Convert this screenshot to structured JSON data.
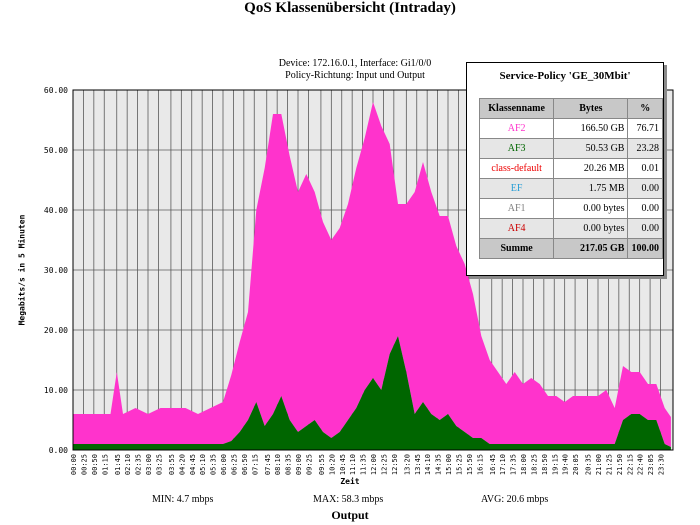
{
  "title": "QoS Klassenübersicht (Intraday)",
  "device_line1": "Device: 172.16.0.1, Interface: Gi1/0/0",
  "device_line2": "Policy-Richtung: Input und Output",
  "stats": {
    "min": "MIN: 4.7 mbps",
    "max": "MAX: 58.3 mbps",
    "avg": "AVG: 20.6 mbps"
  },
  "output_label": "Output",
  "legend": {
    "title": "Service-Policy 'GE_30Mbit'",
    "headers": [
      "Klassenname",
      "Bytes",
      "%"
    ],
    "rows": [
      {
        "name": "AF2",
        "bytes": "166.50 GB",
        "pct": "76.71",
        "color": "#ff33cc"
      },
      {
        "name": "AF3",
        "bytes": "50.53 GB",
        "pct": "23.28",
        "color": "#006600"
      },
      {
        "name": "class-default",
        "bytes": "20.26 MB",
        "pct": "0.01",
        "color": "#ee0000"
      },
      {
        "name": "EF",
        "bytes": "1.75 MB",
        "pct": "0.00",
        "color": "#2a9fd6"
      },
      {
        "name": "AF1",
        "bytes": "0.00 bytes",
        "pct": "0.00",
        "color": "#808080"
      },
      {
        "name": "AF4",
        "bytes": "0.00 bytes",
        "pct": "0.00",
        "color": "#cc0000"
      }
    ],
    "sum": {
      "name": "Summe",
      "bytes": "217.05 GB",
      "pct": "100.00"
    }
  },
  "chart_data": {
    "type": "area",
    "stacked": true,
    "ylabel": "Megabits/s  in 5 Minuten",
    "xlabel": "Zeit",
    "ylim": [
      0,
      60
    ],
    "yticks": [
      "0.00",
      "10.00",
      "20.00",
      "30.00",
      "40.00",
      "50.00",
      "60.00"
    ],
    "grid": true,
    "xticks": [
      "00:00",
      "00:25",
      "00:50",
      "01:15",
      "01:45",
      "02:10",
      "02:35",
      "03:00",
      "03:25",
      "03:55",
      "04:20",
      "04:45",
      "05:10",
      "05:35",
      "06:00",
      "06:25",
      "06:50",
      "07:15",
      "07:45",
      "08:10",
      "08:35",
      "09:00",
      "09:25",
      "09:55",
      "10:20",
      "10:45",
      "11:10",
      "11:35",
      "12:00",
      "12:25",
      "12:50",
      "13:20",
      "13:45",
      "14:10",
      "14:35",
      "15:00",
      "15:25",
      "15:50",
      "16:15",
      "16:45",
      "17:10",
      "17:35",
      "18:00",
      "18:25",
      "18:50",
      "19:15",
      "19:40",
      "20:05",
      "20:35",
      "21:00",
      "21:25",
      "21:50",
      "22:15",
      "22:40",
      "23:05",
      "23:30"
    ],
    "x": [
      "00:00",
      "00:30",
      "01:00",
      "01:30",
      "01:45",
      "02:00",
      "02:30",
      "03:00",
      "03:30",
      "04:00",
      "04:30",
      "05:00",
      "05:30",
      "06:00",
      "06:20",
      "06:40",
      "07:00",
      "07:20",
      "07:40",
      "08:00",
      "08:20",
      "08:40",
      "09:00",
      "09:20",
      "09:40",
      "10:00",
      "10:20",
      "10:40",
      "11:00",
      "11:20",
      "11:40",
      "12:00",
      "12:20",
      "12:40",
      "13:00",
      "13:20",
      "13:40",
      "14:00",
      "14:20",
      "14:40",
      "15:00",
      "15:20",
      "15:40",
      "16:00",
      "16:20",
      "16:40",
      "17:00",
      "17:20",
      "17:40",
      "18:00",
      "18:20",
      "18:40",
      "19:00",
      "19:20",
      "19:40",
      "20:00",
      "20:20",
      "20:40",
      "21:00",
      "21:20",
      "21:40",
      "22:00",
      "22:20",
      "22:40",
      "23:00",
      "23:20",
      "23:40",
      "23:55"
    ],
    "series": [
      {
        "name": "AF3",
        "color": "#006600",
        "values": [
          1,
          1,
          1,
          1,
          1,
          1,
          1,
          1,
          1,
          1,
          1,
          1,
          1,
          1,
          1.5,
          3,
          5,
          8,
          4,
          6,
          9,
          5,
          3,
          4,
          5,
          3,
          2,
          3,
          5,
          7,
          10,
          12,
          10,
          16,
          19,
          13,
          6,
          8,
          6,
          5,
          6,
          4,
          3,
          2,
          2,
          1,
          1,
          1,
          1,
          1,
          1,
          1,
          1,
          1,
          1,
          1,
          1,
          1,
          1,
          1,
          1,
          5,
          6,
          6,
          5,
          5,
          1,
          0.5
        ]
      },
      {
        "name": "AF2",
        "color": "#ff33cc",
        "values": [
          5,
          5,
          5,
          5,
          12,
          5,
          6,
          5,
          6,
          6,
          6,
          5,
          6,
          7,
          11,
          15,
          18,
          32,
          43,
          50,
          47,
          44,
          40,
          42,
          38,
          35,
          33,
          34,
          36,
          40,
          42,
          46,
          44,
          35,
          22,
          28,
          37,
          40,
          37,
          34,
          33,
          30,
          28,
          24,
          17,
          14,
          12,
          10,
          12,
          10,
          11,
          10,
          8,
          8,
          7,
          8,
          8,
          8,
          8,
          9,
          6,
          9,
          7,
          7,
          6,
          6,
          6,
          5
        ]
      }
    ]
  }
}
